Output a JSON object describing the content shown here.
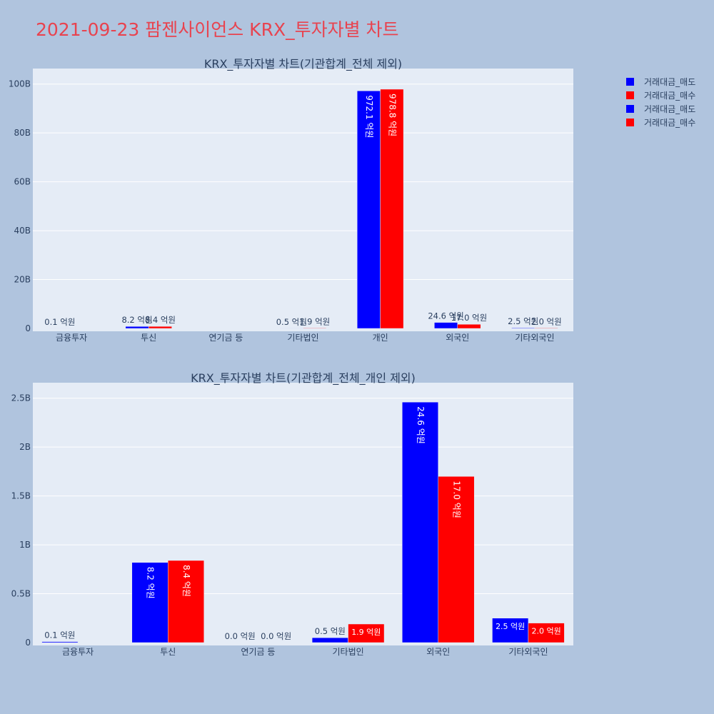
{
  "title": "2021-09-23 팜젠사이언스 KRX_투자자별 차트",
  "legend": [
    {
      "label": "거래대금_매도",
      "color": "#0000ff"
    },
    {
      "label": "거래대금_매수",
      "color": "#ff0000"
    },
    {
      "label": "거래대금_매도",
      "color": "#0000ff"
    },
    {
      "label": "거래대금_매수",
      "color": "#ff0000"
    }
  ],
  "chart_data": [
    {
      "type": "bar",
      "title": "KRX_투자자별 차트(기관합계_전체 제외)",
      "categories": [
        "금융투자",
        "투신",
        "연기금 등",
        "기타법인",
        "개인",
        "외국인",
        "기타외국인"
      ],
      "ylim": [
        0,
        104000000000
      ],
      "yticks": [
        0,
        20000000000,
        40000000000,
        60000000000,
        80000000000,
        100000000000
      ],
      "ytick_labels": [
        "0",
        "20B",
        "40B",
        "60B",
        "80B",
        "100B"
      ],
      "grid": true,
      "series": [
        {
          "name": "거래대금_매도",
          "color": "#0000ff",
          "values": [
            10000000,
            820000000,
            0,
            50000000,
            97210000000,
            2460000000,
            250000000
          ],
          "labels": [
            "0.1 억원",
            "8.2 억원",
            "",
            "0.5 억원",
            "972.1 억원",
            "24.6 억원",
            "2.5 억원"
          ]
        },
        {
          "name": "거래대금_매수",
          "color": "#ff0000",
          "values": [
            0,
            840000000,
            0,
            190000000,
            97880000000,
            1700000000,
            200000000
          ],
          "labels": [
            "",
            "8.4 억원",
            "",
            "1.9 억원",
            "978.8 억원",
            "17.0 억원",
            "2.0 억원"
          ]
        }
      ]
    },
    {
      "type": "bar",
      "title": "KRX_투자자별 차트(기관합계_전체_개인 제외)",
      "categories": [
        "금융투자",
        "투신",
        "연기금 등",
        "기타법인",
        "외국인",
        "기타외국인"
      ],
      "ylim": [
        0,
        2600000000
      ],
      "yticks": [
        0,
        500000000,
        1000000000,
        1500000000,
        2000000000,
        2500000000
      ],
      "ytick_labels": [
        "0",
        "0.5B",
        "1B",
        "1.5B",
        "2B",
        "2.5B"
      ],
      "grid": true,
      "series": [
        {
          "name": "거래대금_매도",
          "color": "#0000ff",
          "values": [
            10000000,
            820000000,
            0,
            50000000,
            2460000000,
            250000000
          ],
          "labels": [
            "0.1 억원",
            "8.2 억원",
            "0.0 억원",
            "0.5 억원",
            "24.6 억원",
            "2.5 억원"
          ]
        },
        {
          "name": "거래대금_매수",
          "color": "#ff0000",
          "values": [
            0,
            840000000,
            0,
            190000000,
            1700000000,
            200000000
          ],
          "labels": [
            "",
            "8.4 억원",
            "0.0 억원",
            "1.9 억원",
            "17.0 억원",
            "2.0 억원"
          ]
        }
      ]
    }
  ]
}
